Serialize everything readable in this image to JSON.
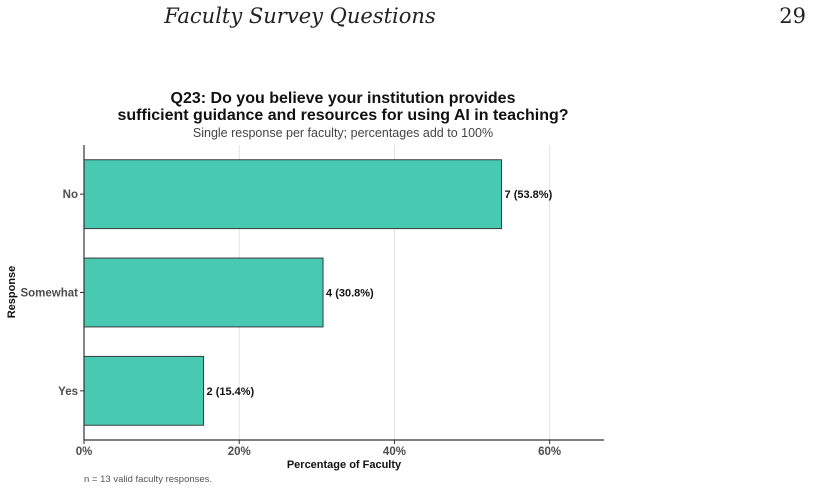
{
  "page": {
    "running_title": "Faculty Survey Questions",
    "page_number": "29"
  },
  "chart_data": {
    "type": "bar",
    "orientation": "horizontal",
    "title_line1": "Q23: Do you believe your institution provides",
    "title_line2": "sufficient guidance and resources for using AI in teaching?",
    "subtitle": "Single response per faculty; percentages add to 100%",
    "xlabel": "Percentage of Faculty",
    "ylabel": "Response",
    "categories": [
      "No",
      "Somewhat",
      "Yes"
    ],
    "values": [
      53.8,
      30.8,
      15.4
    ],
    "counts": [
      7,
      4,
      2
    ],
    "data_labels": [
      "7 (53.8%)",
      "4 (30.8%)",
      "2 (15.4%)"
    ],
    "xlim": [
      0,
      67
    ],
    "x_ticks": [
      0,
      20,
      40,
      60
    ],
    "x_tick_labels": [
      "0%",
      "20%",
      "40%",
      "60%"
    ],
    "grid": "vertical major",
    "bar_color": "#48CAB2",
    "bar_edge_color": "#3a3a3a",
    "caption": "n = 13 valid faculty responses."
  }
}
